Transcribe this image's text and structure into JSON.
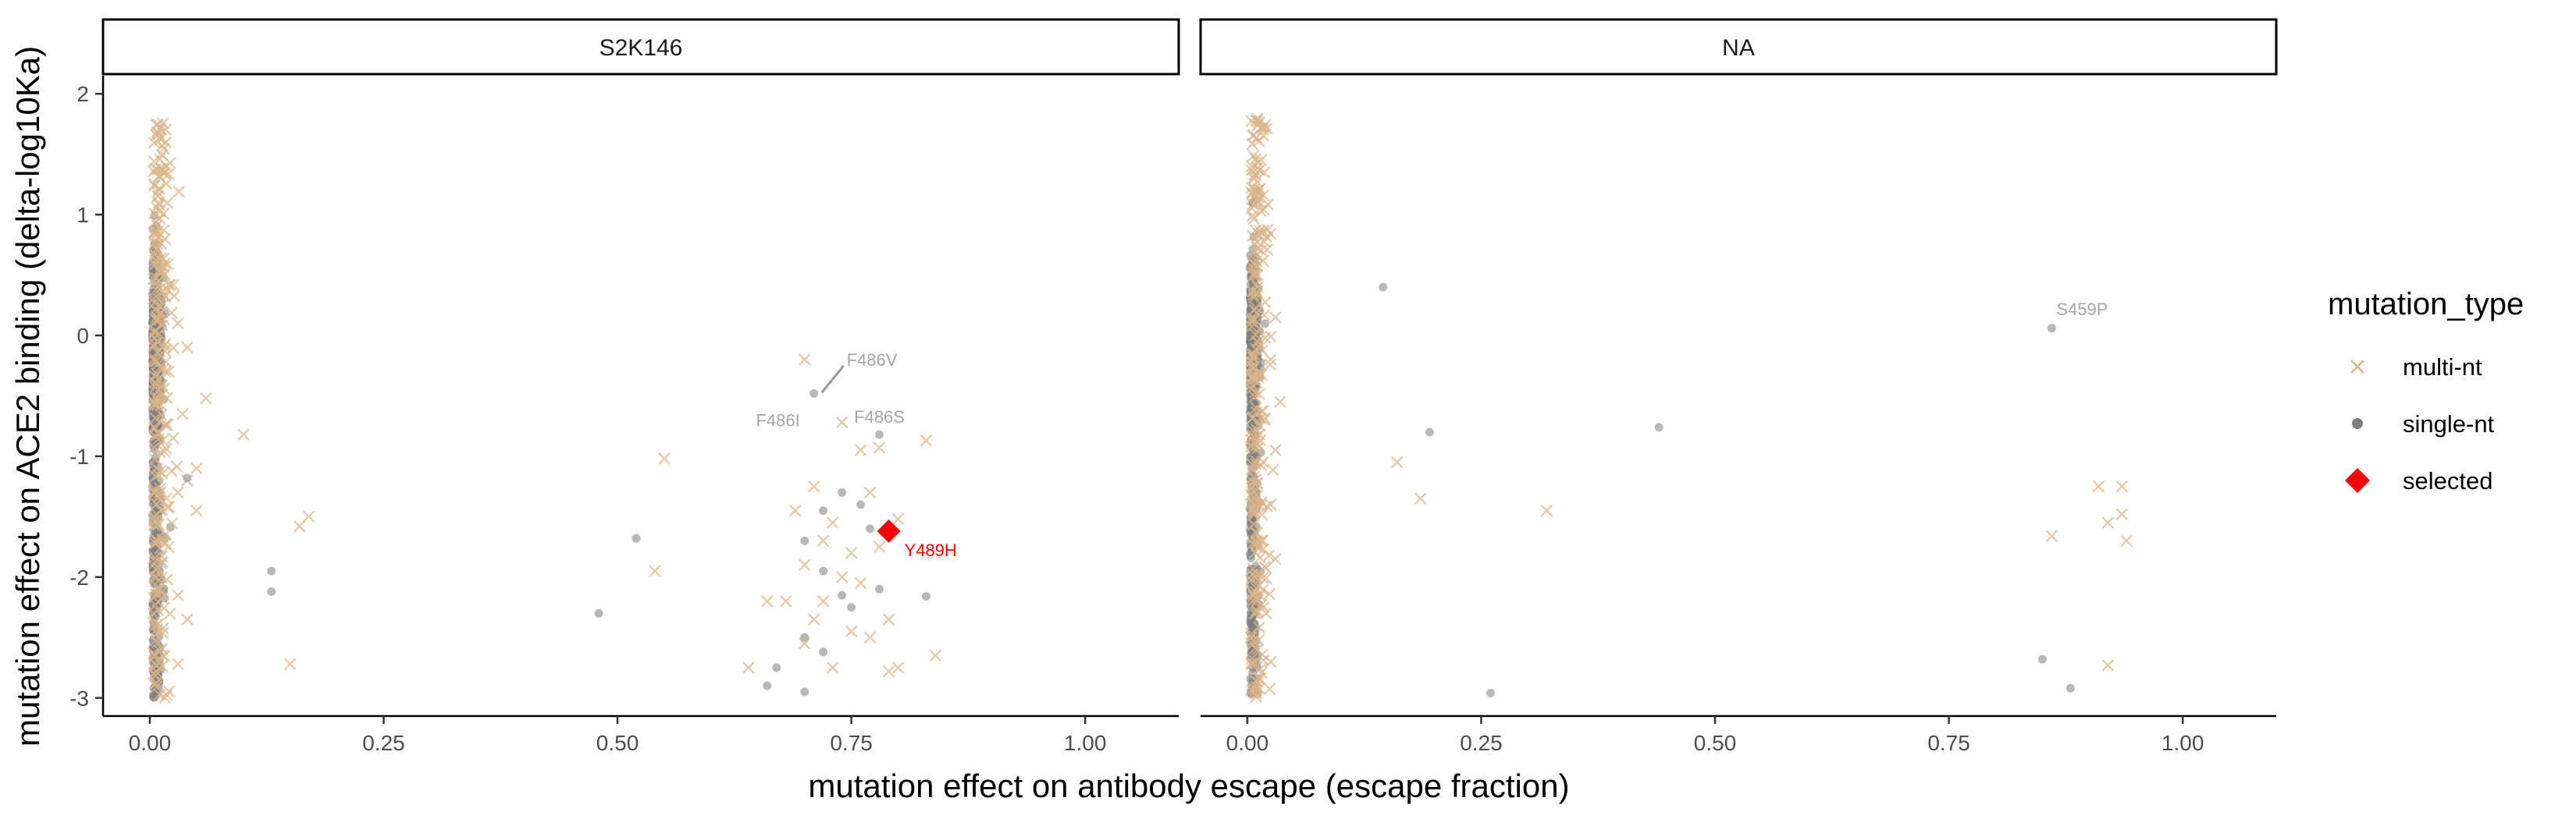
{
  "chart_data": {
    "type": "scatter",
    "xlabel": "mutation effect on antibody escape (escape fraction)",
    "ylabel": "mutation effect on ACE2 binding (delta-log10Ka)",
    "xlim": [
      -0.05,
      1.1
    ],
    "ylim": [
      -3.15,
      2.15
    ],
    "x_ticks": [
      0.0,
      0.25,
      0.5,
      0.75,
      1.0
    ],
    "x_tick_labels": [
      "0.00",
      "0.25",
      "0.50",
      "0.75",
      "1.00"
    ],
    "y_ticks": [
      -3,
      -2,
      -1,
      0,
      1,
      2
    ],
    "y_tick_labels": [
      "-3",
      "-2",
      "-1",
      "0",
      "1",
      "2"
    ],
    "grid": false,
    "legend": {
      "title": "mutation_type",
      "placement": "right",
      "entries": [
        {
          "label": "multi-nt",
          "shape": "x",
          "color": "#D9B48A"
        },
        {
          "label": "single-nt",
          "shape": "dot",
          "color": "#7F7F7F"
        },
        {
          "label": "selected",
          "shape": "diamond",
          "color": "#FF0000"
        }
      ]
    },
    "colors": {
      "multi": "#D9B48A",
      "single": "#808080",
      "selected": "#FF0000",
      "label": "#A6A6A6"
    },
    "panels": [
      {
        "strip": "S2K146",
        "multi_nt": [
          [
            0.7,
            -0.2
          ],
          [
            0.74,
            -0.72
          ],
          [
            0.76,
            -0.95
          ],
          [
            0.78,
            -0.93
          ],
          [
            0.83,
            -0.87
          ],
          [
            0.71,
            -1.25
          ],
          [
            0.69,
            -1.45
          ],
          [
            0.73,
            -1.55
          ],
          [
            0.77,
            -1.3
          ],
          [
            0.8,
            -1.52
          ],
          [
            0.72,
            -1.7
          ],
          [
            0.75,
            -1.8
          ],
          [
            0.7,
            -1.9
          ],
          [
            0.74,
            -2.0
          ],
          [
            0.78,
            -1.75
          ],
          [
            0.68,
            -2.2
          ],
          [
            0.72,
            -2.2
          ],
          [
            0.76,
            -2.05
          ],
          [
            0.71,
            -2.35
          ],
          [
            0.75,
            -2.45
          ],
          [
            0.79,
            -2.35
          ],
          [
            0.66,
            -2.2
          ],
          [
            0.64,
            -2.75
          ],
          [
            0.7,
            -2.55
          ],
          [
            0.73,
            -2.75
          ],
          [
            0.79,
            -2.78
          ],
          [
            0.8,
            -2.75
          ],
          [
            0.84,
            -2.65
          ],
          [
            0.77,
            -2.5
          ],
          [
            0.55,
            -1.02
          ],
          [
            0.54,
            -1.95
          ],
          [
            0.06,
            -0.52
          ],
          [
            0.1,
            -0.82
          ],
          [
            0.05,
            -1.1
          ],
          [
            0.04,
            -1.2
          ],
          [
            0.05,
            -1.45
          ],
          [
            0.17,
            -1.5
          ],
          [
            0.16,
            -1.58
          ],
          [
            0.15,
            -2.72
          ],
          [
            0.04,
            -2.35
          ],
          [
            0.03,
            -2.72
          ],
          [
            0.04,
            -0.1
          ],
          [
            0.03,
            0.1
          ],
          [
            0.02,
            -0.3
          ],
          [
            0.035,
            -0.65
          ],
          [
            0.025,
            -0.85
          ],
          [
            0.03,
            -1.3
          ],
          [
            0.02,
            -1.75
          ],
          [
            0.03,
            -2.15
          ]
        ],
        "single_nt": [
          [
            0.71,
            -0.48
          ],
          [
            0.78,
            -0.82
          ],
          [
            0.7,
            -1.7
          ],
          [
            0.72,
            -1.45
          ],
          [
            0.76,
            -1.4
          ],
          [
            0.72,
            -1.95
          ],
          [
            0.74,
            -2.15
          ],
          [
            0.78,
            -2.1
          ],
          [
            0.83,
            -2.16
          ],
          [
            0.66,
            -2.9
          ],
          [
            0.7,
            -2.95
          ],
          [
            0.72,
            -2.62
          ],
          [
            0.67,
            -2.75
          ],
          [
            0.75,
            -2.25
          ],
          [
            0.52,
            -1.68
          ],
          [
            0.48,
            -2.3
          ],
          [
            0.74,
            -1.3
          ],
          [
            0.7,
            -2.5
          ],
          [
            0.13,
            -1.95
          ],
          [
            0.13,
            -2.12
          ],
          [
            0.04,
            -1.18
          ],
          [
            0.77,
            -1.6
          ]
        ],
        "selected": [
          {
            "x": 0.79,
            "y": -1.62,
            "label": "Y489H"
          }
        ],
        "labels": [
          {
            "text": "F486V",
            "x": 0.715,
            "y": -0.5,
            "lx": 0.745,
            "ly": -0.2,
            "ha": "start"
          },
          {
            "text": "F486I",
            "x": 0.715,
            "y": -0.5,
            "lx": 0.695,
            "ly": -0.7,
            "ha": "end"
          },
          {
            "text": "F486S",
            "x": 0.78,
            "y": -0.82,
            "lx": 0.78,
            "ly": -0.67,
            "ha": "middle"
          }
        ]
      },
      {
        "strip": "NA",
        "multi_nt": [
          [
            0.16,
            -1.05
          ],
          [
            0.185,
            -1.35
          ],
          [
            0.32,
            -1.45
          ],
          [
            0.91,
            -1.25
          ],
          [
            0.935,
            -1.25
          ],
          [
            0.935,
            -1.48
          ],
          [
            0.92,
            -1.55
          ],
          [
            0.94,
            -1.7
          ],
          [
            0.92,
            -2.73
          ],
          [
            0.86,
            -1.66
          ],
          [
            0.03,
            0.15
          ],
          [
            0.025,
            -0.2
          ],
          [
            0.035,
            -0.55
          ],
          [
            0.03,
            -0.95
          ],
          [
            0.025,
            -1.4
          ],
          [
            0.03,
            -1.85
          ],
          [
            0.02,
            -2.3
          ],
          [
            0.025,
            -2.7
          ]
        ],
        "single_nt": [
          [
            0.145,
            0.4
          ],
          [
            0.195,
            -0.8
          ],
          [
            0.44,
            -0.76
          ],
          [
            0.26,
            -2.96
          ],
          [
            0.86,
            0.06
          ],
          [
            0.85,
            -2.68
          ],
          [
            0.88,
            -2.92
          ]
        ],
        "selected": [],
        "labels": [
          {
            "text": "S459P",
            "x": 0.86,
            "y": 0.06,
            "lx": 0.865,
            "ly": 0.22,
            "ha": "start"
          }
        ]
      }
    ]
  }
}
